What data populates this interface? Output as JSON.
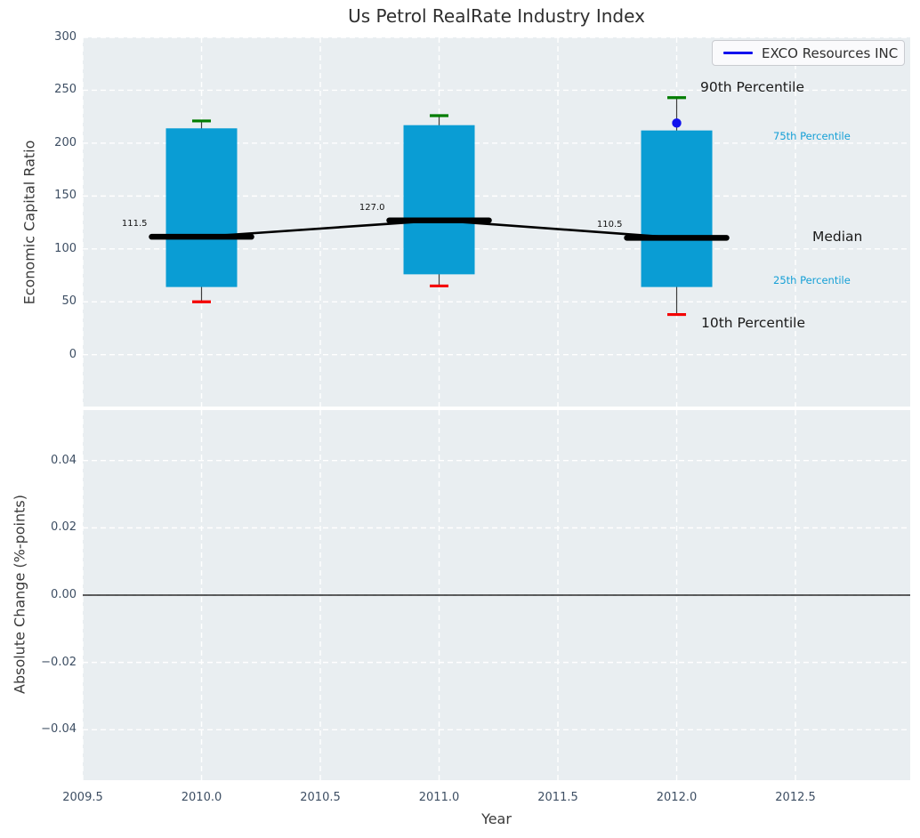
{
  "chart_data": {
    "type": "boxplot",
    "title": "Us Petrol RealRate Industry Index",
    "xlabel": "Year",
    "top_panel": {
      "ylabel": "Economic Capital Ratio",
      "ylim": [
        -49,
        300
      ],
      "ytick_labels": [
        "300",
        "250",
        "200",
        "150",
        "100",
        "50",
        "0"
      ],
      "ytick_values": [
        300,
        250,
        200,
        150,
        100,
        50,
        0
      ],
      "categories": [
        2010,
        2011,
        2012
      ],
      "series": [
        {
          "name": "10th Percentile",
          "role": "whisker_low",
          "values": [
            50,
            65,
            38
          ]
        },
        {
          "name": "25th Percentile",
          "role": "box_bottom",
          "values": [
            64,
            76,
            64
          ]
        },
        {
          "name": "Median",
          "role": "median",
          "values": [
            111.5,
            127.0,
            110.5
          ]
        },
        {
          "name": "75th Percentile",
          "role": "box_top",
          "values": [
            214,
            217,
            212
          ]
        },
        {
          "name": "90th Percentile",
          "role": "whisker_high",
          "values": [
            221,
            226,
            243
          ]
        },
        {
          "name": "EXCO Resources INC",
          "role": "scatter",
          "values": [
            null,
            null,
            219
          ]
        }
      ],
      "median_value_labels": [
        "111.5",
        "127.0",
        "110.5"
      ]
    },
    "bottom_panel": {
      "ylabel": "Absolute Change (%-points)",
      "ylim": [
        -0.055,
        0.055
      ],
      "ytick_labels": [
        "0.04",
        "0.02",
        "0.00",
        "−0.02",
        "−0.04"
      ],
      "ytick_values": [
        0.04,
        0.02,
        0.0,
        -0.02,
        -0.04
      ],
      "zero_line": 0.0,
      "series": []
    },
    "xlim": [
      2009.5,
      2012.983
    ],
    "xtick_labels": [
      "2009.5",
      "2010.0",
      "2010.5",
      "2011.0",
      "2011.5",
      "2012.0",
      "2012.5"
    ],
    "xtick_values": [
      2009.5,
      2010.0,
      2010.5,
      2011.0,
      2011.5,
      2012.0,
      2012.5
    ],
    "grid": true,
    "legend": {
      "label": "EXCO Resources INC",
      "position": "upper right"
    },
    "annotations": {
      "p90": "90th Percentile",
      "p75": "75th Percentile",
      "median": "Median",
      "p25": "25th Percentile",
      "p10": "10th Percentile"
    },
    "colors": {
      "box": "#0a9dd4",
      "whisker": "#3d3d3d",
      "cap_high": "#007d00",
      "cap_low": "#f40000",
      "median": "#000000",
      "exco": "#1111ee",
      "axes_bg": "#e9eef1",
      "grid": "#ffffff",
      "tick_text": "#3d4e63",
      "percentile_text": "#149fd6"
    }
  }
}
